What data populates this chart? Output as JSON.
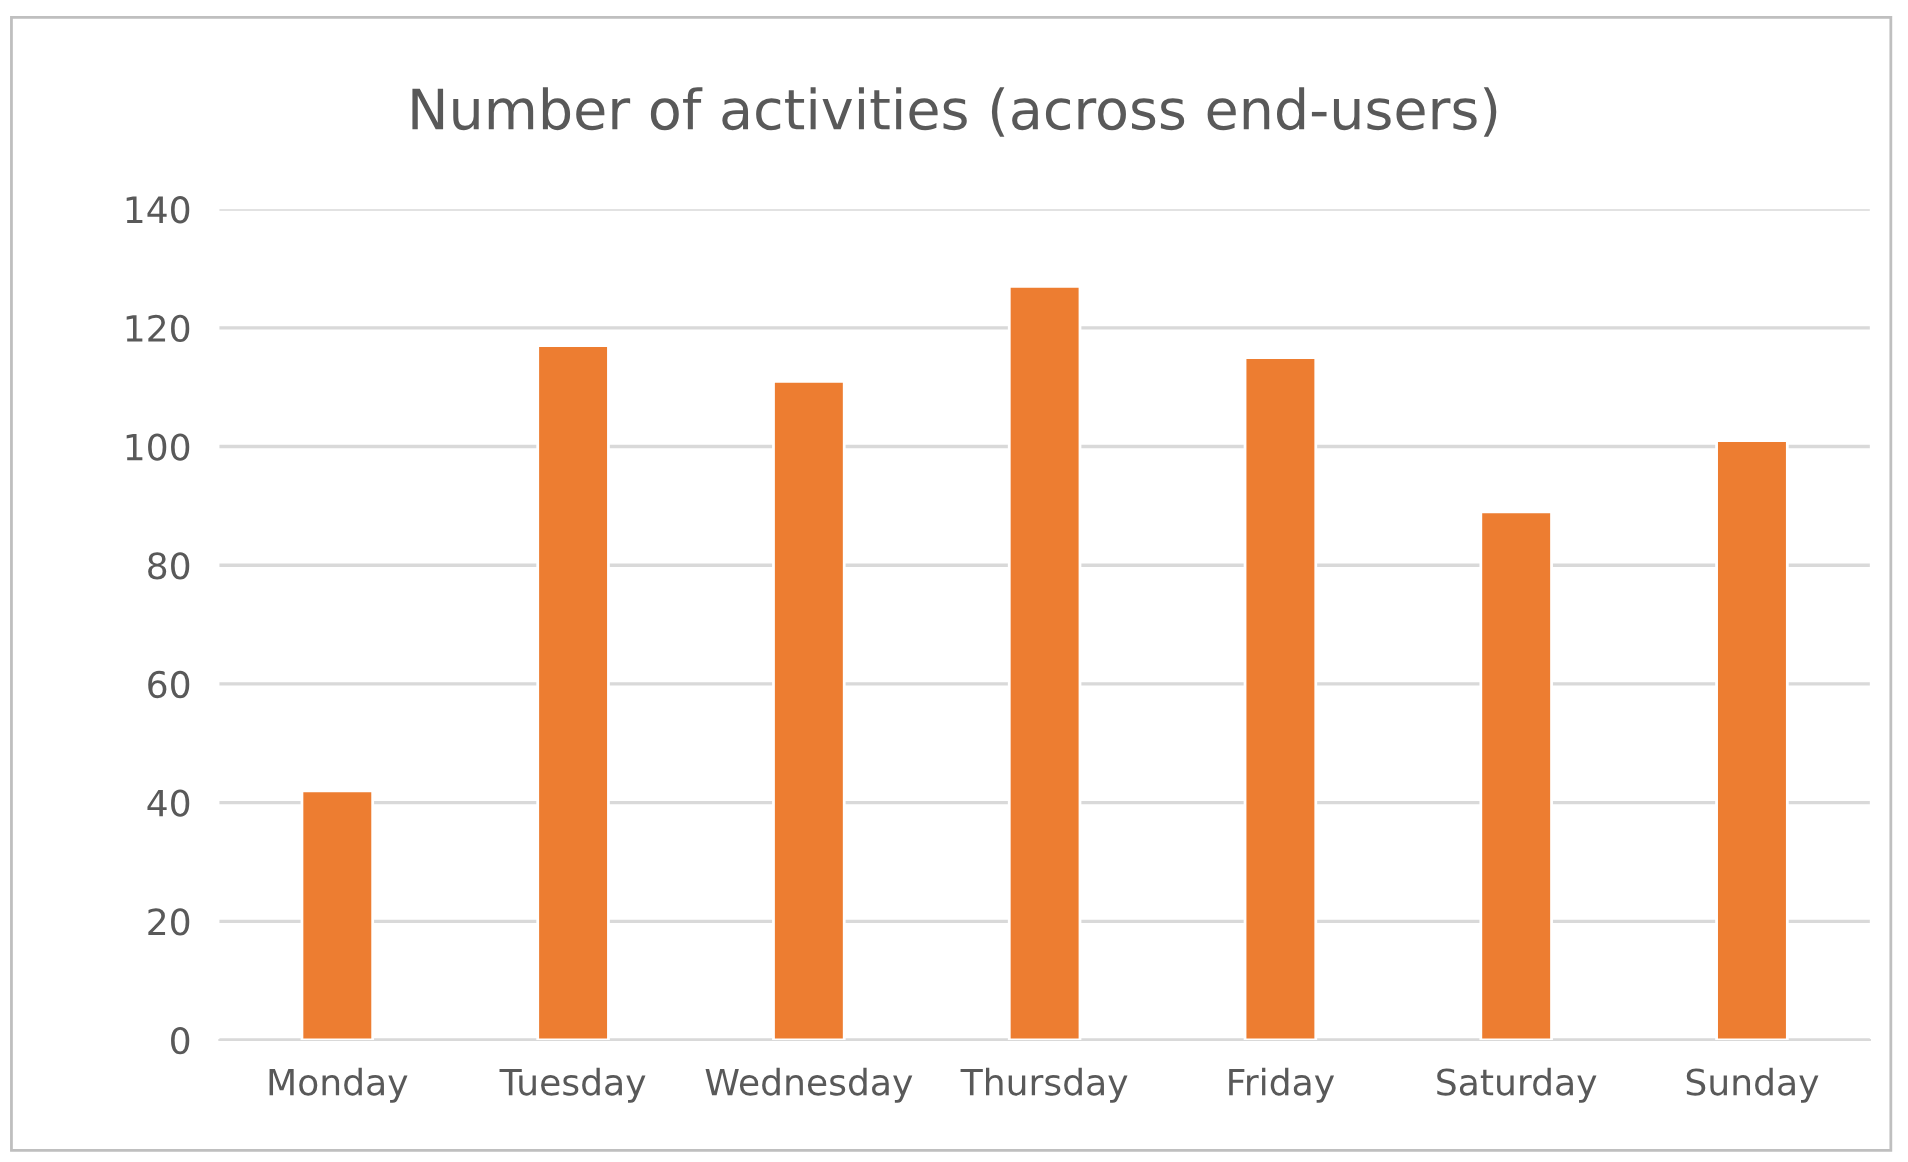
{
  "chart_data": {
    "type": "bar",
    "title": "Number of activities (across end-users)",
    "categories": [
      "Monday",
      "Tuesday",
      "Wednesday",
      "Thursday",
      "Friday",
      "Saturday",
      "Sunday"
    ],
    "values": [
      42,
      117,
      111,
      127,
      115,
      89,
      101
    ],
    "color": "#ed7d31",
    "ylim": [
      0,
      140
    ],
    "yticks": [
      0,
      20,
      40,
      60,
      80,
      100,
      120,
      140
    ],
    "grid": "y",
    "legend": false
  }
}
